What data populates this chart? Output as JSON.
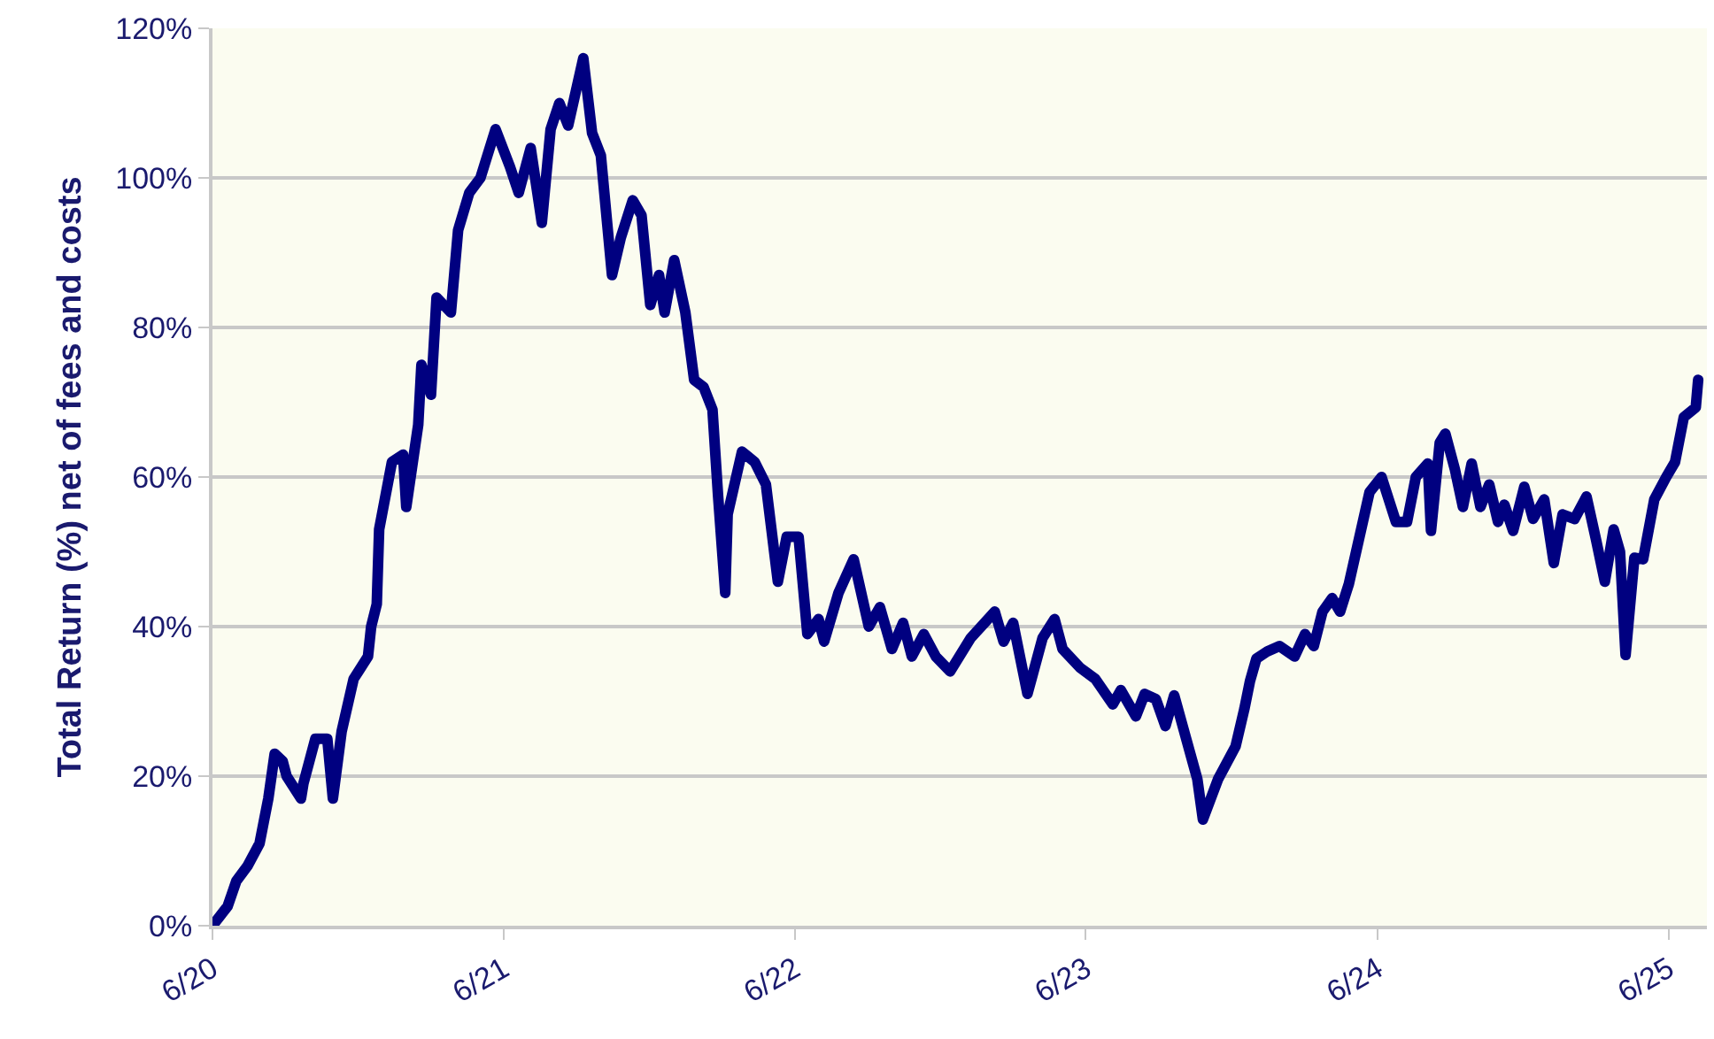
{
  "chart_data": {
    "type": "line",
    "ylabel": "Total Return (%) net of fees and costs",
    "x": [
      "2020-06-01",
      "2020-06-20",
      "2020-07-01",
      "2020-07-15",
      "2020-07-30",
      "2020-08-10",
      "2020-08-18",
      "2020-08-28",
      "2020-09-02",
      "2020-09-20",
      "2020-09-23",
      "2020-10-08",
      "2020-10-23",
      "2020-10-30",
      "2020-11-10",
      "2020-11-25",
      "2020-12-13",
      "2020-12-17",
      "2020-12-24",
      "2020-12-27",
      "2021-01-12",
      "2021-01-26",
      "2021-01-30",
      "2021-02-14",
      "2021-02-18",
      "2021-03-02",
      "2021-03-09",
      "2021-03-27",
      "2021-04-05",
      "2021-04-19",
      "2021-05-03",
      "2021-05-22",
      "2021-06-09",
      "2021-06-20",
      "2021-07-05",
      "2021-07-19",
      "2021-07-30",
      "2021-08-10",
      "2021-08-21",
      "2021-09-09",
      "2021-09-20",
      "2021-10-01",
      "2021-10-15",
      "2021-10-26",
      "2021-11-10",
      "2021-11-21",
      "2021-12-02",
      "2021-12-13",
      "2021-12-20",
      "2022-01-01",
      "2022-01-15",
      "2022-01-26",
      "2022-02-07",
      "2022-02-18",
      "2022-02-25",
      "2022-03-06",
      "2022-03-09",
      "2022-03-27",
      "2022-04-12",
      "2022-04-26",
      "2022-05-11",
      "2022-05-22",
      "2022-06-06",
      "2022-06-17",
      "2022-07-01",
      "2022-07-08",
      "2022-07-26",
      "2022-08-14",
      "2022-09-02",
      "2022-09-16",
      "2022-10-01",
      "2022-10-15",
      "2022-10-26",
      "2022-11-10",
      "2022-11-25",
      "2022-12-13",
      "2023-01-08",
      "2023-02-07",
      "2023-02-18",
      "2023-03-02",
      "2023-03-20",
      "2023-04-08",
      "2023-04-23",
      "2023-05-03",
      "2023-05-25",
      "2023-06-13",
      "2023-07-05",
      "2023-07-15",
      "2023-08-03",
      "2023-08-14",
      "2023-08-28",
      "2023-09-09",
      "2023-09-20",
      "2023-10-05",
      "2023-10-19",
      "2023-10-26",
      "2023-11-14",
      "2023-12-06",
      "2023-12-17",
      "2023-12-24",
      "2024-01-01",
      "2024-01-15",
      "2024-01-30",
      "2024-02-18",
      "2024-03-02",
      "2024-03-13",
      "2024-03-24",
      "2024-04-05",
      "2024-04-15",
      "2024-04-26",
      "2024-05-03",
      "2024-05-22",
      "2024-06-06",
      "2024-06-24",
      "2024-07-08",
      "2024-07-19",
      "2024-08-03",
      "2024-08-07",
      "2024-08-18",
      "2024-08-25",
      "2024-09-06",
      "2024-09-16",
      "2024-09-27",
      "2024-10-08",
      "2024-10-19",
      "2024-10-30",
      "2024-11-07",
      "2024-11-18",
      "2024-12-02",
      "2024-12-13",
      "2024-12-27",
      "2025-01-08",
      "2025-01-19",
      "2025-02-03",
      "2025-02-18",
      "2025-03-02",
      "2025-03-13",
      "2025-03-24",
      "2025-04-01",
      "2025-04-08",
      "2025-04-19",
      "2025-04-30",
      "2025-05-14",
      "2025-05-29",
      "2025-06-09",
      "2025-06-20",
      "2025-07-05",
      "2025-07-08"
    ],
    "series": [
      {
        "color": "#000080",
        "values": [
          0,
          2.6,
          6,
          8,
          11,
          17,
          23,
          22,
          20,
          17,
          19,
          25,
          25,
          17,
          26,
          33,
          36,
          40,
          43,
          53,
          62,
          63,
          56,
          67,
          75,
          71,
          84,
          82,
          93,
          98,
          100,
          106.5,
          101.5,
          98,
          104,
          94,
          106.5,
          110,
          107,
          116,
          106,
          103,
          87,
          92,
          97,
          95,
          83,
          87,
          82,
          89,
          82,
          73,
          72,
          69,
          57.5,
          44.5,
          55,
          63.4,
          62,
          59,
          46,
          52,
          52,
          39,
          41,
          38,
          44.5,
          49,
          40,
          42.6,
          37,
          40.5,
          36,
          39,
          36,
          34,
          38.5,
          42,
          38,
          40.5,
          31,
          38.5,
          41,
          37,
          34.5,
          33,
          29.6,
          31.5,
          28,
          31,
          30.3,
          26.7,
          30.8,
          25,
          19.6,
          14.2,
          19.6,
          24,
          29,
          32.7,
          35.7,
          36.7,
          37.4,
          36,
          39,
          37.4,
          42,
          43.8,
          42,
          45.7,
          49,
          58,
          60,
          54,
          54,
          60,
          61.8,
          52.8,
          64.6,
          65.8,
          61,
          56,
          61.8,
          56,
          59,
          54,
          56.3,
          52.8,
          58.7,
          54.4,
          57,
          48.5,
          55,
          54.4,
          57.4,
          51.6,
          46,
          53,
          50,
          36.2,
          49.2,
          49,
          57,
          60,
          62,
          68,
          69.3,
          73
        ]
      }
    ],
    "xlim": [
      "2020-06-01",
      "2025-07-19"
    ],
    "xticks": [
      {
        "value": "2020-06-01",
        "label": "6/20"
      },
      {
        "value": "2021-06-01",
        "label": "6/21"
      },
      {
        "value": "2022-06-01",
        "label": "6/22"
      },
      {
        "value": "2023-06-01",
        "label": "6/23"
      },
      {
        "value": "2024-06-01",
        "label": "6/24"
      },
      {
        "value": "2025-06-01",
        "label": "6/25"
      }
    ],
    "ylim": [
      0,
      120
    ],
    "yticks": [
      {
        "value": 0,
        "label": "0%"
      },
      {
        "value": 20,
        "label": "20%"
      },
      {
        "value": 40,
        "label": "40%"
      },
      {
        "value": 60,
        "label": "60%"
      },
      {
        "value": 80,
        "label": "80%"
      },
      {
        "value": 100,
        "label": "100%"
      },
      {
        "value": 120,
        "label": "120%"
      }
    ],
    "grid": "y",
    "line_style": "solid"
  }
}
